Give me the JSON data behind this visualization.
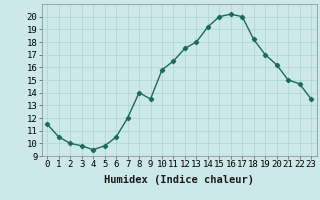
{
  "x": [
    0,
    1,
    2,
    3,
    4,
    5,
    6,
    7,
    8,
    9,
    10,
    11,
    12,
    13,
    14,
    15,
    16,
    17,
    18,
    19,
    20,
    21,
    22,
    23
  ],
  "y": [
    11.5,
    10.5,
    10.0,
    9.8,
    9.5,
    9.8,
    10.5,
    12.0,
    14.0,
    13.5,
    15.8,
    16.5,
    17.5,
    18.0,
    19.2,
    20.0,
    20.2,
    20.0,
    18.2,
    17.0,
    16.2,
    15.0,
    14.7,
    13.5
  ],
  "line_color": "#1a6b5a",
  "marker": "D",
  "markersize": 2.2,
  "linewidth": 1.0,
  "bg_color": "#cce8e8",
  "grid_color": "#b0d8d8",
  "xlabel": "Humidex (Indice chaleur)",
  "ylim": [
    9,
    21
  ],
  "xlim": [
    -0.5,
    23.5
  ],
  "yticks": [
    9,
    10,
    11,
    12,
    13,
    14,
    15,
    16,
    17,
    18,
    19,
    20
  ],
  "xticks": [
    0,
    1,
    2,
    3,
    4,
    5,
    6,
    7,
    8,
    9,
    10,
    11,
    12,
    13,
    14,
    15,
    16,
    17,
    18,
    19,
    20,
    21,
    22,
    23
  ],
  "xlabel_fontsize": 7.5,
  "tick_fontsize": 6.5
}
